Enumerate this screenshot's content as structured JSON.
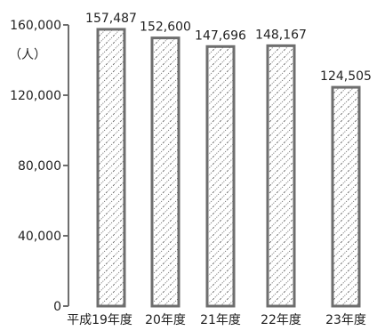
{
  "chart_data": {
    "type": "bar",
    "title": "",
    "xlabel": "",
    "ylabel": "（人）",
    "categories": [
      "平成19年度",
      "20年度",
      "21年度",
      "22年度",
      "23年度"
    ],
    "values": [
      157487,
      152600,
      147696,
      148167,
      124505
    ],
    "value_labels": [
      "157,487",
      "152,600",
      "147,696",
      "148,167",
      "124,505"
    ],
    "ylim": [
      0,
      160000
    ],
    "yticks": [
      0,
      40000,
      80000,
      120000,
      160000
    ],
    "ytick_labels": [
      "0",
      "40,000",
      "80,000",
      "120,000",
      "160,000"
    ],
    "grid": false,
    "bar_fill": "hatched",
    "colors": {
      "bar_outline": "#6e6e6e",
      "hatch": "#444444",
      "axis": "#6e6e6e"
    }
  }
}
